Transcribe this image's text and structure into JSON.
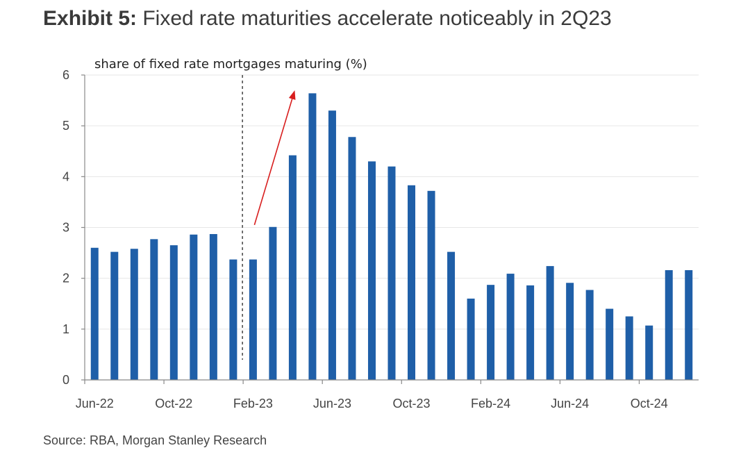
{
  "header": {
    "title_lead": "Exhibit 5:",
    "title_rest": "Fixed rate maturities accelerate noticeably in 2Q23"
  },
  "source": "Source: RBA, Morgan Stanley Research",
  "colors": {
    "bar": "#1f5fa8",
    "arrow": "#d81e1e",
    "axis": "#888888",
    "grid": "#e6e6e6"
  },
  "chart_data": {
    "type": "bar",
    "title": "Fixed rate maturities accelerate noticeably in 2Q23",
    "ylabel": "share of fixed rate mortgages maturing (%)",
    "xlabel": "",
    "ylim": [
      0,
      6
    ],
    "yticks": [
      0,
      1,
      2,
      3,
      4,
      5,
      6
    ],
    "categories": [
      "Jun-22",
      "Jul-22",
      "Aug-22",
      "Sep-22",
      "Oct-22",
      "Nov-22",
      "Dec-22",
      "Jan-23",
      "Feb-23",
      "Mar-23",
      "Apr-23",
      "May-23",
      "Jun-23",
      "Jul-23",
      "Aug-23",
      "Sep-23",
      "Oct-23",
      "Nov-23",
      "Dec-23",
      "Jan-24",
      "Feb-24",
      "Mar-24",
      "Apr-24",
      "May-24",
      "Jun-24",
      "Jul-24",
      "Aug-24",
      "Sep-24",
      "Oct-24",
      "Nov-24",
      "Dec-24"
    ],
    "values": [
      2.6,
      2.52,
      2.58,
      2.77,
      2.65,
      2.86,
      2.87,
      2.37,
      2.37,
      3.01,
      4.42,
      5.64,
      5.3,
      4.78,
      4.3,
      4.2,
      3.83,
      3.72,
      2.52,
      1.6,
      1.87,
      2.09,
      1.86,
      2.24,
      1.91,
      1.77,
      1.4,
      1.25,
      1.07,
      2.16,
      2.16
    ],
    "xtick_labels": [
      {
        "label": "Jun-22",
        "index": 0
      },
      {
        "label": "Oct-22",
        "index": 4
      },
      {
        "label": "Feb-23",
        "index": 8
      },
      {
        "label": "Jun-23",
        "index": 12
      },
      {
        "label": "Oct-23",
        "index": 16
      },
      {
        "label": "Feb-24",
        "index": 20
      },
      {
        "label": "Jun-24",
        "index": 24
      },
      {
        "label": "Oct-24",
        "index": 28
      }
    ],
    "reference_line_between_categories": [
      "Jan-23",
      "Feb-23"
    ],
    "annotation": {
      "type": "arrow",
      "from": {
        "category": "Feb-23",
        "value": 3.05
      },
      "to": {
        "category": "Apr-23",
        "value": 5.7
      }
    },
    "grid": true,
    "legend": "none"
  }
}
